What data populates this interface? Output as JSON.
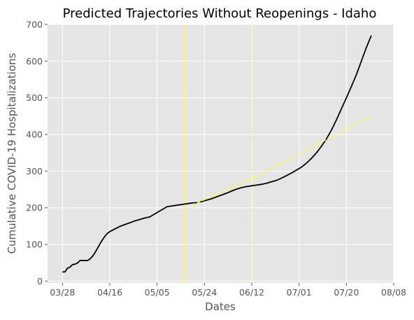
{
  "chart_data": {
    "type": "line",
    "title": "Predicted Trajectories Without Reopenings - Idaho",
    "xlabel": "Dates",
    "ylabel": "Cumulative COVID-19 Hospitalizations",
    "x_ticks": [
      "03/28",
      "04/16",
      "05/05",
      "05/24",
      "06/12",
      "07/01",
      "07/20",
      "08/08"
    ],
    "x_tick_dates": [
      "2020-03-28",
      "2020-04-16",
      "2020-05-05",
      "2020-05-24",
      "2020-06-12",
      "2020-07-01",
      "2020-07-20",
      "2020-08-08"
    ],
    "xlim": [
      "2020-03-22",
      "2020-08-08"
    ],
    "ylim": [
      -5,
      700
    ],
    "y_ticks": [
      0,
      100,
      200,
      300,
      400,
      500,
      600,
      700
    ],
    "grid": true,
    "colors": {
      "background": "#e5e5e5",
      "grid": "#ffffff",
      "observed": "#000000",
      "reference": "#ffff33"
    },
    "series": [
      {
        "style": "solid",
        "color": "#000000",
        "points": [
          [
            "2020-03-28",
            25
          ],
          [
            "2020-03-29",
            25
          ],
          [
            "2020-03-30",
            35
          ],
          [
            "2020-03-31",
            38
          ],
          [
            "2020-04-01",
            45
          ],
          [
            "2020-04-02",
            46
          ],
          [
            "2020-04-03",
            49
          ],
          [
            "2020-04-04",
            56
          ],
          [
            "2020-04-05",
            56
          ],
          [
            "2020-04-06",
            56
          ],
          [
            "2020-04-07",
            56
          ],
          [
            "2020-04-08",
            60
          ],
          [
            "2020-04-09",
            67
          ],
          [
            "2020-04-10",
            77
          ],
          [
            "2020-04-11",
            89
          ],
          [
            "2020-04-12",
            101
          ],
          [
            "2020-04-13",
            112
          ],
          [
            "2020-04-14",
            122
          ],
          [
            "2020-04-15",
            130
          ],
          [
            "2020-04-16",
            135
          ],
          [
            "2020-04-18",
            142
          ],
          [
            "2020-04-20",
            149
          ],
          [
            "2020-04-22",
            154
          ],
          [
            "2020-04-24",
            159
          ],
          [
            "2020-04-26",
            164
          ],
          [
            "2020-04-28",
            168
          ],
          [
            "2020-04-30",
            172
          ],
          [
            "2020-05-02",
            175
          ],
          [
            "2020-05-04",
            183
          ],
          [
            "2020-05-06",
            191
          ],
          [
            "2020-05-08",
            199
          ],
          [
            "2020-05-09",
            203
          ],
          [
            "2020-05-11",
            205
          ],
          [
            "2020-05-13",
            207
          ],
          [
            "2020-05-15",
            209
          ],
          [
            "2020-05-17",
            211
          ],
          [
            "2020-05-19",
            213
          ],
          [
            "2020-05-21",
            214
          ],
          [
            "2020-05-23",
            217
          ],
          [
            "2020-05-25",
            221
          ],
          [
            "2020-05-27",
            225
          ],
          [
            "2020-05-29",
            230
          ],
          [
            "2020-05-31",
            235
          ],
          [
            "2020-06-02",
            240
          ],
          [
            "2020-06-04",
            246
          ],
          [
            "2020-06-06",
            251
          ],
          [
            "2020-06-08",
            255
          ],
          [
            "2020-06-10",
            258
          ],
          [
            "2020-06-12",
            260
          ],
          [
            "2020-06-14",
            262
          ],
          [
            "2020-06-16",
            264
          ],
          [
            "2020-06-18",
            267
          ],
          [
            "2020-06-20",
            271
          ],
          [
            "2020-06-22",
            275
          ],
          [
            "2020-06-24",
            281
          ],
          [
            "2020-06-26",
            288
          ],
          [
            "2020-06-28",
            295
          ],
          [
            "2020-06-30",
            303
          ],
          [
            "2020-07-02",
            311
          ],
          [
            "2020-07-04",
            322
          ],
          [
            "2020-07-06",
            335
          ],
          [
            "2020-07-08",
            350
          ],
          [
            "2020-07-10",
            368
          ],
          [
            "2020-07-12",
            388
          ],
          [
            "2020-07-14",
            412
          ],
          [
            "2020-07-16",
            440
          ],
          [
            "2020-07-18",
            470
          ],
          [
            "2020-07-20",
            500
          ],
          [
            "2020-07-22",
            531
          ],
          [
            "2020-07-24",
            563
          ],
          [
            "2020-07-26",
            600
          ],
          [
            "2020-07-28",
            637
          ],
          [
            "2020-07-30",
            670
          ]
        ]
      },
      {
        "style": "dashed",
        "color": "#ffff33",
        "points": [
          [
            "2020-05-19",
            207
          ],
          [
            "2020-06-12",
            280
          ],
          [
            "2020-07-30",
            450
          ]
        ]
      }
    ],
    "vertical_lines": [
      {
        "date": "2020-05-16",
        "style": "solid",
        "color": "#ffff33"
      },
      {
        "date": "2020-06-12",
        "style": "dotted",
        "color": "#ffff33"
      }
    ]
  }
}
